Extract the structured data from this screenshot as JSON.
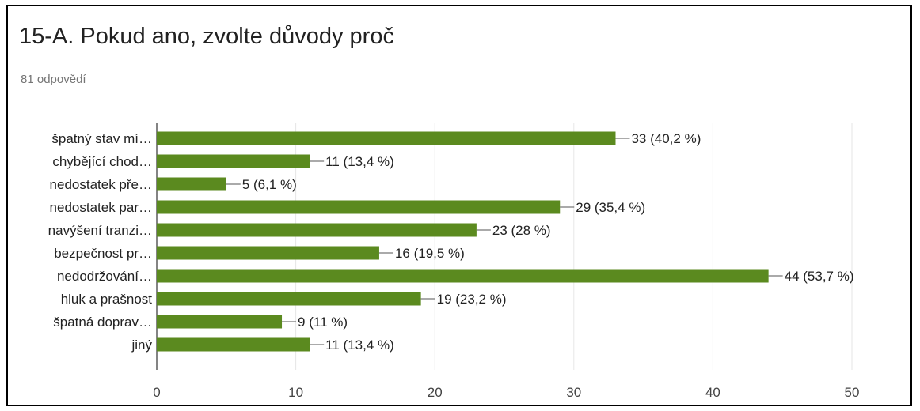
{
  "question": {
    "title": "15-A. Pokud ano, zvolte důvody proč",
    "responses": "81 odpovědí"
  },
  "chart_data": {
    "type": "bar",
    "orientation": "horizontal",
    "categories": [
      "špatný stav mí…",
      "chybějící chod…",
      "nedostatek pře…",
      "nedostatek par…",
      "navýšení tranzi…",
      "bezpečnost pr…",
      "nedodržování…",
      "hluk a prašnost",
      "špatná doprav…",
      "jiný"
    ],
    "values": [
      33,
      11,
      5,
      29,
      23,
      16,
      44,
      19,
      9,
      11
    ],
    "data_labels": [
      "33 (40,2 %)",
      "11 (13,4 %)",
      "5 (6,1 %)",
      "29 (35,4 %)",
      "23 (28 %)",
      "16 (19,5 %)",
      "44 (53,7 %)",
      "19 (23,2 %)",
      "9 (11 %)",
      "11 (13,4 %)"
    ],
    "xlim": [
      0,
      50
    ],
    "xticks": [
      0,
      10,
      20,
      30,
      40,
      50
    ],
    "grid": true,
    "bar_color": "#5b8a1f"
  }
}
